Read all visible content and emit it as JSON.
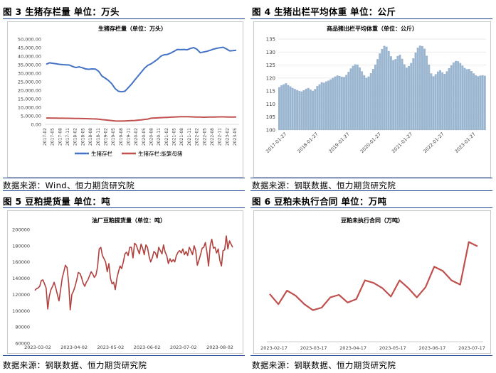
{
  "sections": {
    "fig3": {
      "caption": "图 3  生猪存栏量  单位：万头",
      "source": "数据来源：Wind、恒力期货研究院"
    },
    "fig4": {
      "caption": "图 4  生猪出栏平均体重  单位：公斤",
      "source": "数据来源：钢联数据、恒力期货研究院"
    },
    "fig5": {
      "caption": "图 5  豆粕提货量  单位：吨",
      "source": "数据来源：钢联数据、恒力期货研究院"
    },
    "fig6": {
      "caption": "图 6  豆粕未执行合同  单位：万吨",
      "source": "数据来源：钢联数据、恒力期货研究院"
    }
  },
  "chart_data": [
    {
      "id": "fig3",
      "type": "line",
      "title": "生猪存栏量（单位：万头）",
      "x_tick_labels": [
        "2017-02",
        "2017-05",
        "2017-08",
        "2017-11",
        "2018-02",
        "2018-05",
        "2018-08",
        "2018-11",
        "2019-02",
        "2019-05",
        "2019-08",
        "2019-11",
        "2020-02",
        "2020-05",
        "2020-08",
        "2020-11",
        "2021-02",
        "2021-05",
        "2021-08",
        "2021-11",
        "2022-02",
        "2022-05",
        "2022-08",
        "2022-11",
        "2023-02",
        "2023-05"
      ],
      "y_tick_labels": [
        "0.00",
        "5,000.00",
        "10,000.00",
        "15,000.00",
        "20,000.00",
        "25,000.00",
        "30,000.00",
        "35,000.00",
        "40,000.00",
        "45,000.00",
        "50,000.00"
      ],
      "ylim": [
        0,
        50000
      ],
      "grid": false,
      "legend_position": "bottom",
      "series": [
        {
          "name": "生猪存栏",
          "color": "#4472c4",
          "values": [
            35300,
            36100,
            35800,
            35500,
            35200,
            35000,
            34900,
            34800,
            34000,
            33300,
            33700,
            33200,
            32500,
            32300,
            32500,
            32400,
            31100,
            28300,
            27100,
            25700,
            23800,
            21000,
            19400,
            19100,
            19400,
            21400,
            23500,
            25900,
            28300,
            30600,
            32900,
            34600,
            35500,
            36800,
            38200,
            40000,
            40800,
            41000,
            41800,
            42800,
            43900,
            43800,
            43900,
            43700,
            44500,
            45000,
            44000,
            42000,
            42400,
            42800,
            43400,
            44100,
            44600,
            44900,
            45200,
            44200,
            43100,
            43200,
            43400
          ]
        },
        {
          "name": "生猪存栏:能繁母猪",
          "color": "#c0504d",
          "values": [
            3690,
            3720,
            3670,
            3620,
            3600,
            3580,
            3560,
            3550,
            3480,
            3400,
            3420,
            3380,
            3320,
            3280,
            3200,
            3150,
            3000,
            2750,
            2600,
            2400,
            2200,
            1950,
            1900,
            1920,
            2000,
            2080,
            2160,
            2260,
            2440,
            2640,
            2880,
            3100,
            3600,
            3700,
            3800,
            3900,
            4000,
            4100,
            4200,
            4300,
            4380,
            4450,
            4500,
            4480,
            4400,
            4350,
            4300,
            4250,
            4180,
            4200,
            4250,
            4300,
            4330,
            4360,
            4380,
            4340,
            4300,
            4310,
            4320
          ]
        }
      ]
    },
    {
      "id": "fig4",
      "type": "bar",
      "title": "商品猪出栏平均体重（单位：公斤）",
      "x_tick_labels": [
        "2017-01-27",
        "2018-01-27",
        "2019-01-27",
        "2020-01-27",
        "2021-01-27",
        "2022-01-27",
        "2023-01-27"
      ],
      "y_tick_labels": [
        "100",
        "105",
        "110",
        "115",
        "120",
        "125",
        "130",
        "135"
      ],
      "ylim": [
        100,
        135
      ],
      "grid": true,
      "series": [
        {
          "name": "",
          "color": "#9ab5cf",
          "values": [
            116.5,
            117.2,
            117.6,
            118.0,
            117.3,
            116.8,
            116.2,
            115.8,
            115.4,
            115.0,
            114.8,
            115.3,
            115.9,
            116.2,
            115.6,
            115.1,
            115.8,
            116.9,
            117.6,
            118.4,
            118.2,
            118.7,
            119.0,
            119.5,
            120.1,
            120.6,
            121.0,
            120.8,
            120.5,
            120.4,
            121.2,
            122.4,
            123.7,
            124.7,
            125.3,
            125.2,
            124.1,
            122.6,
            121.1,
            120.1,
            120.6,
            121.9,
            123.5,
            125.2,
            127.3,
            129.5,
            131.2,
            132.4,
            132.1,
            130.4,
            128.4,
            126.9,
            127.3,
            128.5,
            129.0,
            127.4,
            125.3,
            124.0,
            124.6,
            125.8,
            127.6,
            129.8,
            131.7,
            132.5,
            132.3,
            131.3,
            128.6,
            125.2,
            121.8,
            120.7,
            121.5,
            122.5,
            123.0,
            122.2,
            121.6,
            122.6,
            123.8,
            124.9,
            126.0,
            126.6,
            126.5,
            125.8,
            124.8,
            123.9,
            123.4,
            123.5,
            122.7,
            121.8,
            121.1,
            120.7,
            121.0,
            121.1,
            120.9
          ]
        }
      ]
    },
    {
      "id": "fig5",
      "type": "line",
      "title": "油厂豆粕提货量（单位：吨）",
      "x_tick_labels": [
        "2023-03-02",
        "2023-04-02",
        "2023-05-02",
        "2023-06-02",
        "2023-07-02",
        "2023-08-02"
      ],
      "y_tick_labels": [
        "60000",
        "80000",
        "100000",
        "120000",
        "140000",
        "160000",
        "180000",
        "200000"
      ],
      "ylim": [
        60000,
        200000
      ],
      "grid": false,
      "series": [
        {
          "name": "",
          "color": "#b0413e",
          "values": [
            125000,
            127000,
            128000,
            130000,
            137000,
            138000,
            133000,
            128000,
            102000,
            118000,
            126000,
            130000,
            135000,
            128000,
            120000,
            112000,
            126000,
            140000,
            148000,
            156000,
            153000,
            134000,
            101000,
            120000,
            124000,
            130000,
            138000,
            147000,
            146000,
            141000,
            134000,
            130000,
            135000,
            138000,
            143000,
            148000,
            145000,
            141000,
            144000,
            154000,
            176000,
            178000,
            168000,
            164000,
            160000,
            148000,
            158000,
            140000,
            133000,
            135000,
            126000,
            140000,
            148000,
            155000,
            152000,
            160000,
            170000,
            172000,
            168000,
            178000,
            178000,
            165000,
            183000,
            181000,
            175000,
            170000,
            182000,
            177000,
            169000,
            181000,
            178000,
            167000,
            160000,
            165000,
            173000,
            171000,
            165000,
            178000,
            174000,
            170000,
            181000,
            172000,
            168000,
            158000,
            164000,
            160000,
            163000,
            160000,
            168000,
            172000,
            174000,
            171000,
            176000,
            169000,
            173000,
            168000,
            178000,
            174000,
            169000,
            180000,
            174000,
            156000,
            162000,
            169000,
            177000,
            178000,
            184000,
            172000,
            155000,
            180000,
            188000,
            177000,
            178000,
            171000,
            176000,
            162000,
            155000,
            174000,
            175000,
            192000,
            176000,
            186000,
            182000,
            178000
          ]
        }
      ]
    },
    {
      "id": "fig6",
      "type": "line",
      "title": "豆粕未执行合同（万吨）",
      "x_tick_labels": [
        "2023-02-17",
        "2023-03-17",
        "2023-04-17",
        "2023-05-17",
        "2023-06-17",
        "2023-07-17"
      ],
      "ylim": [
        0,
        700
      ],
      "grid": false,
      "series": [
        {
          "name": "",
          "color": "#c0504d",
          "values": [
            280,
            220,
            300,
            270,
            220,
            185,
            200,
            260,
            275,
            230,
            250,
            360,
            345,
            315,
            265,
            360,
            315,
            260,
            320,
            440,
            415,
            360,
            335,
            585,
            560
          ]
        }
      ]
    }
  ]
}
